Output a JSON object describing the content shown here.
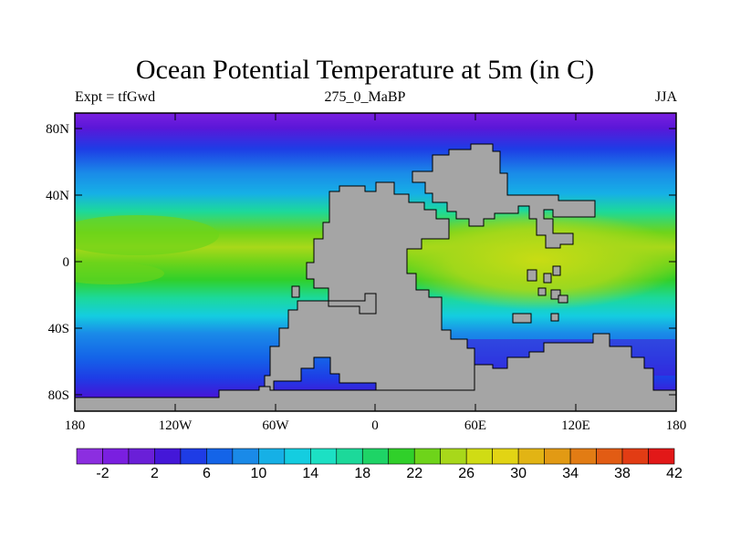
{
  "header": {
    "title": "Ocean Potential Temperature at 5m (in C)",
    "left_label": "Expt = tfGwd",
    "center_label": "275_0_MaBP",
    "right_label": "JJA"
  },
  "map": {
    "lat_ticks": [
      "80N",
      "40N",
      "0",
      "40S",
      "80S"
    ],
    "lon_ticks": [
      "180",
      "120W",
      "60W",
      "0",
      "60E",
      "120E",
      "180"
    ],
    "land_color": "#a5a5a5",
    "coast_color": "#000000"
  },
  "colorbar": {
    "labels": [
      "-2",
      "2",
      "6",
      "10",
      "14",
      "18",
      "22",
      "26",
      "30",
      "34",
      "38",
      "42"
    ],
    "colors": [
      "#8c2ee0",
      "#7a1fe0",
      "#6a1fd8",
      "#4417d8",
      "#1e3ce6",
      "#1464e8",
      "#1a8ae8",
      "#16b0e6",
      "#14cde0",
      "#1ce0c4",
      "#1cd99a",
      "#1ed466",
      "#30d02a",
      "#6ed41a",
      "#a8d81a",
      "#d0dc14",
      "#e2d414",
      "#e2b414",
      "#e29a14",
      "#e27c14",
      "#e25c14",
      "#e23c14",
      "#e21818"
    ]
  }
}
